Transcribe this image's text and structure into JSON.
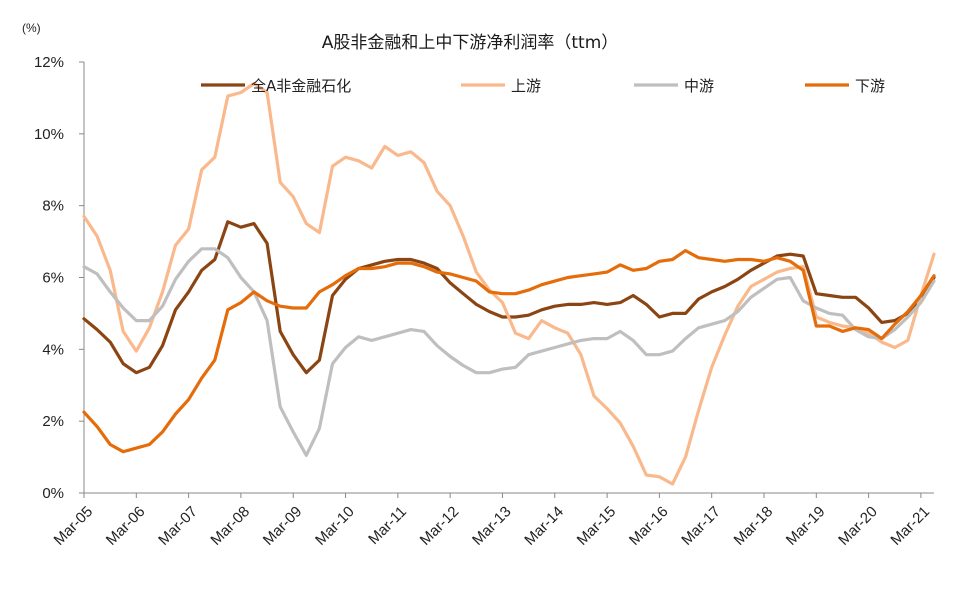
{
  "chart_data": {
    "type": "line",
    "title": "A股非金融和上中下游净利润率（ttm）",
    "y_unit": "(%)",
    "ylim": [
      0,
      12
    ],
    "yticks": [
      "0%",
      "2%",
      "4%",
      "6%",
      "8%",
      "10%",
      "12%"
    ],
    "xticks": [
      "Mar-05",
      "Mar-06",
      "Mar-07",
      "Mar-08",
      "Mar-09",
      "Mar-10",
      "Mar-11",
      "Mar-12",
      "Mar-13",
      "Mar-14",
      "Mar-15",
      "Mar-16",
      "Mar-17",
      "Mar-18",
      "Mar-19",
      "Mar-20",
      "Mar-21"
    ],
    "x_start": 2005.0,
    "x_end": 2021.25,
    "grid": false,
    "legend_position": "top",
    "series": [
      {
        "name": "全A非金融石化",
        "color": "#8B4513",
        "points": [
          [
            2005.0,
            4.85
          ],
          [
            2005.25,
            4.55
          ],
          [
            2005.5,
            4.2
          ],
          [
            2005.75,
            3.6
          ],
          [
            2006.0,
            3.35
          ],
          [
            2006.25,
            3.5
          ],
          [
            2006.5,
            4.1
          ],
          [
            2006.75,
            5.1
          ],
          [
            2007.0,
            5.6
          ],
          [
            2007.25,
            6.2
          ],
          [
            2007.5,
            6.5
          ],
          [
            2007.75,
            7.55
          ],
          [
            2008.0,
            7.4
          ],
          [
            2008.25,
            7.5
          ],
          [
            2008.5,
            6.95
          ],
          [
            2008.75,
            4.5
          ],
          [
            2009.0,
            3.85
          ],
          [
            2009.25,
            3.35
          ],
          [
            2009.5,
            3.7
          ],
          [
            2009.75,
            5.5
          ],
          [
            2010.0,
            5.95
          ],
          [
            2010.25,
            6.25
          ],
          [
            2010.5,
            6.35
          ],
          [
            2010.75,
            6.45
          ],
          [
            2011.0,
            6.5
          ],
          [
            2011.25,
            6.5
          ],
          [
            2011.5,
            6.4
          ],
          [
            2011.75,
            6.25
          ],
          [
            2012.0,
            5.85
          ],
          [
            2012.25,
            5.55
          ],
          [
            2012.5,
            5.25
          ],
          [
            2012.75,
            5.05
          ],
          [
            2013.0,
            4.9
          ],
          [
            2013.25,
            4.9
          ],
          [
            2013.5,
            4.95
          ],
          [
            2013.75,
            5.1
          ],
          [
            2014.0,
            5.2
          ],
          [
            2014.25,
            5.25
          ],
          [
            2014.5,
            5.25
          ],
          [
            2014.75,
            5.3
          ],
          [
            2015.0,
            5.25
          ],
          [
            2015.25,
            5.3
          ],
          [
            2015.5,
            5.5
          ],
          [
            2015.75,
            5.25
          ],
          [
            2016.0,
            4.9
          ],
          [
            2016.25,
            5.0
          ],
          [
            2016.5,
            5.0
          ],
          [
            2016.75,
            5.4
          ],
          [
            2017.0,
            5.6
          ],
          [
            2017.25,
            5.75
          ],
          [
            2017.5,
            5.95
          ],
          [
            2017.75,
            6.2
          ],
          [
            2018.0,
            6.4
          ],
          [
            2018.25,
            6.6
          ],
          [
            2018.5,
            6.65
          ],
          [
            2018.75,
            6.6
          ],
          [
            2019.0,
            5.55
          ],
          [
            2019.25,
            5.5
          ],
          [
            2019.5,
            5.45
          ],
          [
            2019.75,
            5.45
          ],
          [
            2020.0,
            5.15
          ],
          [
            2020.25,
            4.75
          ],
          [
            2020.5,
            4.8
          ],
          [
            2020.75,
            5.0
          ],
          [
            2021.0,
            5.4
          ],
          [
            2021.25,
            6.0
          ]
        ]
      },
      {
        "name": "上游",
        "color": "#F9B98C",
        "points": [
          [
            2005.0,
            7.7
          ],
          [
            2005.25,
            7.15
          ],
          [
            2005.5,
            6.2
          ],
          [
            2005.75,
            4.5
          ],
          [
            2006.0,
            3.95
          ],
          [
            2006.25,
            4.6
          ],
          [
            2006.5,
            5.6
          ],
          [
            2006.75,
            6.9
          ],
          [
            2007.0,
            7.35
          ],
          [
            2007.25,
            9.0
          ],
          [
            2007.5,
            9.35
          ],
          [
            2007.75,
            11.05
          ],
          [
            2008.0,
            11.15
          ],
          [
            2008.25,
            11.4
          ],
          [
            2008.5,
            11.15
          ],
          [
            2008.75,
            8.65
          ],
          [
            2009.0,
            8.25
          ],
          [
            2009.25,
            7.5
          ],
          [
            2009.5,
            7.25
          ],
          [
            2009.75,
            9.1
          ],
          [
            2010.0,
            9.35
          ],
          [
            2010.25,
            9.25
          ],
          [
            2010.5,
            9.05
          ],
          [
            2010.75,
            9.65
          ],
          [
            2011.0,
            9.4
          ],
          [
            2011.25,
            9.5
          ],
          [
            2011.5,
            9.2
          ],
          [
            2011.75,
            8.4
          ],
          [
            2012.0,
            8.0
          ],
          [
            2012.25,
            7.15
          ],
          [
            2012.5,
            6.15
          ],
          [
            2012.75,
            5.65
          ],
          [
            2013.0,
            5.3
          ],
          [
            2013.25,
            4.45
          ],
          [
            2013.5,
            4.3
          ],
          [
            2013.75,
            4.8
          ],
          [
            2014.0,
            4.6
          ],
          [
            2014.25,
            4.45
          ],
          [
            2014.5,
            3.85
          ],
          [
            2014.75,
            2.7
          ],
          [
            2015.0,
            2.35
          ],
          [
            2015.25,
            1.95
          ],
          [
            2015.5,
            1.3
          ],
          [
            2015.75,
            0.5
          ],
          [
            2016.0,
            0.45
          ],
          [
            2016.25,
            0.25
          ],
          [
            2016.5,
            1.0
          ],
          [
            2016.75,
            2.3
          ],
          [
            2017.0,
            3.5
          ],
          [
            2017.25,
            4.4
          ],
          [
            2017.5,
            5.2
          ],
          [
            2017.75,
            5.75
          ],
          [
            2018.0,
            5.95
          ],
          [
            2018.25,
            6.15
          ],
          [
            2018.5,
            6.25
          ],
          [
            2018.75,
            6.3
          ],
          [
            2019.0,
            4.9
          ],
          [
            2019.25,
            4.75
          ],
          [
            2019.5,
            4.65
          ],
          [
            2019.75,
            4.6
          ],
          [
            2020.0,
            4.45
          ],
          [
            2020.25,
            4.2
          ],
          [
            2020.5,
            4.05
          ],
          [
            2020.75,
            4.25
          ],
          [
            2021.0,
            5.5
          ],
          [
            2021.25,
            6.65
          ]
        ]
      },
      {
        "name": "中游",
        "color": "#BFBFBF",
        "points": [
          [
            2005.0,
            6.3
          ],
          [
            2005.25,
            6.1
          ],
          [
            2005.5,
            5.6
          ],
          [
            2005.75,
            5.15
          ],
          [
            2006.0,
            4.8
          ],
          [
            2006.25,
            4.8
          ],
          [
            2006.5,
            5.2
          ],
          [
            2006.75,
            5.95
          ],
          [
            2007.0,
            6.45
          ],
          [
            2007.25,
            6.8
          ],
          [
            2007.5,
            6.8
          ],
          [
            2007.75,
            6.55
          ],
          [
            2008.0,
            6.0
          ],
          [
            2008.25,
            5.6
          ],
          [
            2008.5,
            4.8
          ],
          [
            2008.75,
            2.4
          ],
          [
            2009.0,
            1.7
          ],
          [
            2009.25,
            1.05
          ],
          [
            2009.5,
            1.8
          ],
          [
            2009.75,
            3.6
          ],
          [
            2010.0,
            4.05
          ],
          [
            2010.25,
            4.35
          ],
          [
            2010.5,
            4.25
          ],
          [
            2010.75,
            4.35
          ],
          [
            2011.0,
            4.45
          ],
          [
            2011.25,
            4.55
          ],
          [
            2011.5,
            4.5
          ],
          [
            2011.75,
            4.1
          ],
          [
            2012.0,
            3.8
          ],
          [
            2012.25,
            3.55
          ],
          [
            2012.5,
            3.35
          ],
          [
            2012.75,
            3.35
          ],
          [
            2013.0,
            3.45
          ],
          [
            2013.25,
            3.5
          ],
          [
            2013.5,
            3.85
          ],
          [
            2013.75,
            3.95
          ],
          [
            2014.0,
            4.05
          ],
          [
            2014.25,
            4.15
          ],
          [
            2014.5,
            4.25
          ],
          [
            2014.75,
            4.3
          ],
          [
            2015.0,
            4.3
          ],
          [
            2015.25,
            4.5
          ],
          [
            2015.5,
            4.25
          ],
          [
            2015.75,
            3.85
          ],
          [
            2016.0,
            3.85
          ],
          [
            2016.25,
            3.95
          ],
          [
            2016.5,
            4.3
          ],
          [
            2016.75,
            4.6
          ],
          [
            2017.0,
            4.7
          ],
          [
            2017.25,
            4.8
          ],
          [
            2017.5,
            5.05
          ],
          [
            2017.75,
            5.45
          ],
          [
            2018.0,
            5.7
          ],
          [
            2018.25,
            5.95
          ],
          [
            2018.5,
            6.0
          ],
          [
            2018.75,
            5.35
          ],
          [
            2019.0,
            5.15
          ],
          [
            2019.25,
            5.0
          ],
          [
            2019.5,
            4.95
          ],
          [
            2019.75,
            4.55
          ],
          [
            2020.0,
            4.35
          ],
          [
            2020.25,
            4.3
          ],
          [
            2020.5,
            4.55
          ],
          [
            2020.75,
            4.9
          ],
          [
            2021.0,
            5.3
          ],
          [
            2021.25,
            5.9
          ]
        ]
      },
      {
        "name": "下游",
        "color": "#E46C0A",
        "points": [
          [
            2005.0,
            2.25
          ],
          [
            2005.25,
            1.85
          ],
          [
            2005.5,
            1.35
          ],
          [
            2005.75,
            1.15
          ],
          [
            2006.0,
            1.25
          ],
          [
            2006.25,
            1.35
          ],
          [
            2006.5,
            1.7
          ],
          [
            2006.75,
            2.2
          ],
          [
            2007.0,
            2.6
          ],
          [
            2007.25,
            3.2
          ],
          [
            2007.5,
            3.7
          ],
          [
            2007.75,
            5.1
          ],
          [
            2008.0,
            5.3
          ],
          [
            2008.25,
            5.6
          ],
          [
            2008.5,
            5.35
          ],
          [
            2008.75,
            5.2
          ],
          [
            2009.0,
            5.15
          ],
          [
            2009.25,
            5.15
          ],
          [
            2009.5,
            5.6
          ],
          [
            2009.75,
            5.8
          ],
          [
            2010.0,
            6.05
          ],
          [
            2010.25,
            6.25
          ],
          [
            2010.5,
            6.25
          ],
          [
            2010.75,
            6.3
          ],
          [
            2011.0,
            6.4
          ],
          [
            2011.25,
            6.4
          ],
          [
            2011.5,
            6.3
          ],
          [
            2011.75,
            6.15
          ],
          [
            2012.0,
            6.1
          ],
          [
            2012.25,
            6.0
          ],
          [
            2012.5,
            5.9
          ],
          [
            2012.75,
            5.6
          ],
          [
            2013.0,
            5.55
          ],
          [
            2013.25,
            5.55
          ],
          [
            2013.5,
            5.65
          ],
          [
            2013.75,
            5.8
          ],
          [
            2014.0,
            5.9
          ],
          [
            2014.25,
            6.0
          ],
          [
            2014.5,
            6.05
          ],
          [
            2014.75,
            6.1
          ],
          [
            2015.0,
            6.15
          ],
          [
            2015.25,
            6.35
          ],
          [
            2015.5,
            6.2
          ],
          [
            2015.75,
            6.25
          ],
          [
            2016.0,
            6.45
          ],
          [
            2016.25,
            6.5
          ],
          [
            2016.5,
            6.75
          ],
          [
            2016.75,
            6.55
          ],
          [
            2017.0,
            6.5
          ],
          [
            2017.25,
            6.45
          ],
          [
            2017.5,
            6.5
          ],
          [
            2017.75,
            6.5
          ],
          [
            2018.0,
            6.45
          ],
          [
            2018.25,
            6.55
          ],
          [
            2018.5,
            6.45
          ],
          [
            2018.75,
            6.2
          ],
          [
            2019.0,
            4.65
          ],
          [
            2019.25,
            4.65
          ],
          [
            2019.5,
            4.5
          ],
          [
            2019.75,
            4.6
          ],
          [
            2020.0,
            4.55
          ],
          [
            2020.25,
            4.3
          ],
          [
            2020.5,
            4.7
          ],
          [
            2020.75,
            5.05
          ],
          [
            2021.0,
            5.5
          ],
          [
            2021.25,
            6.05
          ]
        ]
      }
    ]
  }
}
